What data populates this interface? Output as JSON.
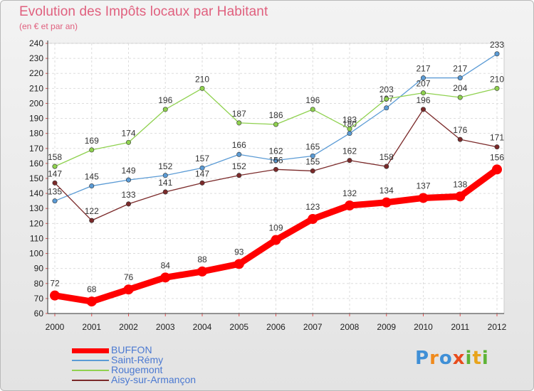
{
  "title": "Evolution des Impôts locaux par Habitant",
  "subtitle": "(en € et par an)",
  "logo": {
    "text": "Proxiti",
    "letters": [
      "P",
      "r",
      "o",
      "x",
      "i",
      "t",
      "i"
    ],
    "colors": [
      "#3f8fd6",
      "#f08a1c",
      "#3f8fd6",
      "#e84c1c",
      "#5db336",
      "#e8a41c",
      "#5db336"
    ]
  },
  "chart_data": {
    "type": "line",
    "title": "Evolution des Impôts locaux par Habitant",
    "subtitle": "(en € et par an)",
    "xlabel": "",
    "ylabel": "",
    "categories": [
      "2000",
      "2001",
      "2002",
      "2003",
      "2004",
      "2005",
      "2006",
      "2007",
      "2008",
      "2009",
      "2010",
      "2011",
      "2012"
    ],
    "ylim": [
      60,
      240
    ],
    "yticks": [
      60,
      70,
      80,
      90,
      100,
      110,
      120,
      130,
      140,
      150,
      160,
      170,
      180,
      190,
      200,
      210,
      220,
      230,
      240
    ],
    "grid": true,
    "legend_position": "bottom-left",
    "series": [
      {
        "name": "BUFFON",
        "color": "#ff0000",
        "thick": true,
        "values": [
          72,
          68,
          76,
          84,
          88,
          93,
          109,
          123,
          132,
          134,
          137,
          138,
          156
        ],
        "labels": [
          "72",
          "68",
          "76",
          "84",
          "88",
          "93",
          "109",
          "123",
          "132",
          "134",
          "137",
          "138",
          "156"
        ]
      },
      {
        "name": "Saint-Rémy",
        "color": "#5b9bd5",
        "thick": false,
        "values": [
          135,
          145,
          149,
          152,
          157,
          166,
          162,
          165,
          180,
          197,
          217,
          217,
          233
        ],
        "labels": [
          "135",
          "145",
          "149",
          "152",
          "157",
          "166",
          "162",
          "165",
          "180",
          "197",
          "217",
          "217",
          "233"
        ]
      },
      {
        "name": "Rougemont",
        "color": "#8fd14f",
        "thick": false,
        "values": [
          158,
          169,
          174,
          196,
          210,
          187,
          186,
          196,
          183,
          203,
          207,
          204,
          210
        ],
        "labels": [
          "158",
          "169",
          "174",
          "196",
          "210",
          "187",
          "186",
          "196",
          "183",
          "203",
          "207",
          "204",
          "210"
        ]
      },
      {
        "name": "Aisy-sur-Armançon",
        "color": "#7b2a2a",
        "thick": false,
        "values": [
          147,
          122,
          133,
          141,
          147,
          152,
          156,
          155,
          162,
          158,
          196,
          176,
          171
        ],
        "labels": [
          "147",
          "122",
          "133",
          "141",
          "147",
          "152",
          "156",
          "155",
          "162",
          "158",
          "196",
          "176",
          "171"
        ]
      }
    ]
  }
}
